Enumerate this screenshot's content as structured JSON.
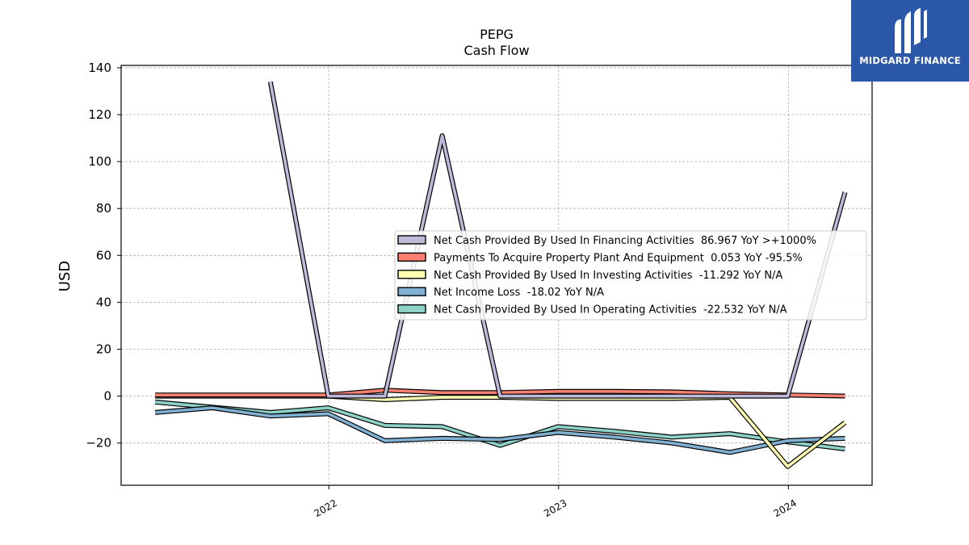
{
  "chart_data": {
    "type": "line",
    "title": "PEPG",
    "subtitle": "Cash Flow",
    "ylabel": "USD",
    "xlabel": "",
    "ylim": [
      -38,
      141
    ],
    "xlim": [
      "2021-02-05",
      "2024-05-13"
    ],
    "yticks": [
      140,
      120,
      100,
      80,
      60,
      40,
      20,
      0,
      -20
    ],
    "ytick_labels": [
      "140",
      "120",
      "100",
      "80",
      "60",
      "40",
      "20",
      "0",
      "−20"
    ],
    "xticks": [
      "2022-01-01",
      "2023-01-01",
      "2024-01-01"
    ],
    "xtick_labels": [
      "2022",
      "2023",
      "2024"
    ],
    "grid": true,
    "legend_placement": "center-right",
    "series": [
      {
        "name": "Net Cash Provided By Used In Operating Activities  -22.532 YoY N/A",
        "color": "#8dd3c7",
        "points": [
          [
            "2021-03-31",
            -2.5
          ],
          [
            "2021-09-30",
            -7.0
          ],
          [
            "2021-12-31",
            -5.0
          ],
          [
            "2022-03-31",
            -12.5
          ],
          [
            "2022-06-30",
            -13.0
          ],
          [
            "2022-09-30",
            -21.0
          ],
          [
            "2022-12-31",
            -13.0
          ],
          [
            "2023-03-31",
            -15.0
          ],
          [
            "2023-06-30",
            -17.5
          ],
          [
            "2023-09-30",
            -16.0
          ],
          [
            "2023-12-31",
            -19.5
          ],
          [
            "2024-03-31",
            -22.5
          ]
        ]
      },
      {
        "name": "Net Income Loss  -18.02 YoY N/A",
        "color": "#80b1d3",
        "points": [
          [
            "2021-03-31",
            -7.0
          ],
          [
            "2021-06-30",
            -5.0
          ],
          [
            "2021-09-30",
            -8.5
          ],
          [
            "2021-12-31",
            -7.5
          ],
          [
            "2022-03-31",
            -19.0
          ],
          [
            "2022-06-30",
            -18.0
          ],
          [
            "2022-09-30",
            -18.5
          ],
          [
            "2022-12-31",
            -15.5
          ],
          [
            "2023-03-31",
            -17.5
          ],
          [
            "2023-06-30",
            -20.0
          ],
          [
            "2023-09-30",
            -24.0
          ],
          [
            "2023-12-31",
            -19.0
          ],
          [
            "2024-03-31",
            -18.0
          ]
        ]
      },
      {
        "name": "Net Cash Provided By Used In Investing Activities  -11.292 YoY N/A",
        "color": "#ffffb3",
        "points": [
          [
            "2021-03-31",
            0.0
          ],
          [
            "2021-12-31",
            0.0
          ],
          [
            "2022-03-31",
            -1.5
          ],
          [
            "2022-06-30",
            -0.5
          ],
          [
            "2022-09-30",
            -0.5
          ],
          [
            "2022-12-31",
            -1.0
          ],
          [
            "2023-03-31",
            -1.0
          ],
          [
            "2023-06-30",
            -1.0
          ],
          [
            "2023-09-30",
            -0.5
          ],
          [
            "2023-12-31",
            -30.0
          ],
          [
            "2024-03-31",
            -11.3
          ]
        ]
      },
      {
        "name": "Payments To Acquire Property Plant And Equipment  0.053 YoY -95.5%",
        "color": "#fb8072",
        "points": [
          [
            "2021-03-31",
            0.5
          ],
          [
            "2021-12-31",
            0.5
          ],
          [
            "2022-03-31",
            2.5
          ],
          [
            "2022-06-30",
            1.5
          ],
          [
            "2022-09-30",
            1.5
          ],
          [
            "2022-12-31",
            2.0
          ],
          [
            "2023-03-31",
            2.0
          ],
          [
            "2023-06-30",
            1.8
          ],
          [
            "2023-09-30",
            1.0
          ],
          [
            "2023-12-31",
            0.5
          ],
          [
            "2024-03-31",
            0.05
          ]
        ]
      },
      {
        "name": "Net Cash Provided By Used In Financing Activities  86.967 YoY >+1000%",
        "color": "#bebada",
        "points": [
          [
            "2021-09-30",
            134.0
          ],
          [
            "2021-12-31",
            0.0
          ],
          [
            "2022-03-31",
            0.0
          ],
          [
            "2022-06-30",
            111.0
          ],
          [
            "2022-09-30",
            0.0
          ],
          [
            "2022-12-31",
            0.0
          ],
          [
            "2023-03-31",
            0.0
          ],
          [
            "2023-06-30",
            0.0
          ],
          [
            "2023-09-30",
            0.0
          ],
          [
            "2023-12-31",
            0.0
          ],
          [
            "2024-03-31",
            87.0
          ]
        ]
      }
    ],
    "legend_order": [
      4,
      3,
      2,
      1,
      0
    ]
  },
  "logo": {
    "text": "MIDGARD FINANCE",
    "background": "#2b57a8"
  }
}
